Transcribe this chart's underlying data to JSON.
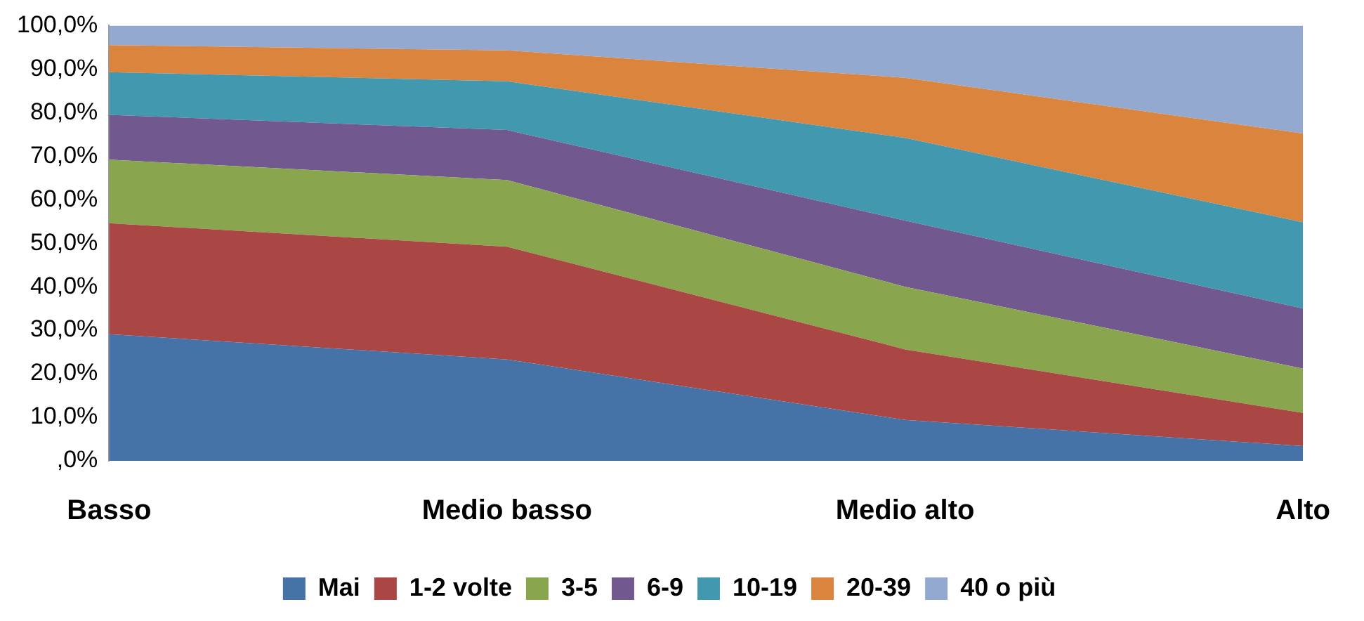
{
  "chart_data": {
    "type": "area",
    "stacked": true,
    "legend": "bottom",
    "grid": false,
    "categories": [
      "Basso",
      "Medio basso",
      "Medio alto",
      "Alto"
    ],
    "ylim": [
      0,
      100
    ],
    "yticks": [
      {
        "value": 0,
        "label": ",0%"
      },
      {
        "value": 10,
        "label": "10,0%"
      },
      {
        "value": 20,
        "label": "20,0%"
      },
      {
        "value": 30,
        "label": "30,0%"
      },
      {
        "value": 40,
        "label": "40,0%"
      },
      {
        "value": 50,
        "label": "50,0%"
      },
      {
        "value": 60,
        "label": "60,0%"
      },
      {
        "value": 70,
        "label": "70,0%"
      },
      {
        "value": 80,
        "label": "80,0%"
      },
      {
        "value": 90,
        "label": "90,0%"
      },
      {
        "value": 100,
        "label": "100,0%"
      }
    ],
    "series": [
      {
        "name": "Mai",
        "color": "#4572a7",
        "values": [
          29.1,
          23.3,
          9.4,
          3.4
        ]
      },
      {
        "name": "1-2 volte",
        "color": "#aa4643",
        "values": [
          25.5,
          25.9,
          16.2,
          7.6
        ]
      },
      {
        "name": "3-5",
        "color": "#89a54e",
        "values": [
          14.6,
          15.3,
          14.4,
          10.2
        ]
      },
      {
        "name": "6-9",
        "color": "#71588f",
        "values": [
          10.3,
          11.5,
          15.2,
          13.8
        ]
      },
      {
        "name": "10-19",
        "color": "#4198af",
        "values": [
          9.8,
          11.2,
          19.0,
          19.8
        ]
      },
      {
        "name": "20-39",
        "color": "#db843d",
        "values": [
          6.2,
          7.1,
          13.8,
          20.4
        ]
      },
      {
        "name": "40 o più",
        "color": "#93a9cf",
        "values": [
          4.5,
          5.7,
          12.0,
          24.8
        ]
      }
    ]
  }
}
